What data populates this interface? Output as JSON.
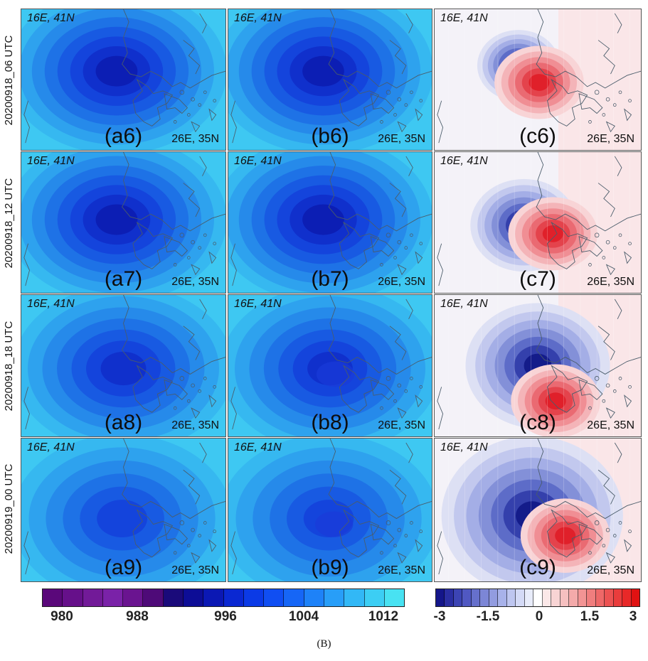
{
  "row_labels": [
    "20200918_06 UTC",
    "20200918_12 UTC",
    "20200918_18 UTC",
    "20200919_00 UTC"
  ],
  "corner_nw": "16E, 41N",
  "corner_se": "26E, 35N",
  "panel_labels": [
    [
      "(a6)",
      "(b6)",
      "(c6)"
    ],
    [
      "(a7)",
      "(b7)",
      "(c7)"
    ],
    [
      "(a8)",
      "(b8)",
      "(c8)"
    ],
    [
      "(a9)",
      "(b9)",
      "(c9)"
    ]
  ],
  "pressure_colorbar": {
    "unit_range": [
      978,
      1014
    ],
    "tick_labels": [
      "980",
      "988",
      "996",
      "1004",
      "1012"
    ],
    "colors": [
      "#5a087a",
      "#66108a",
      "#721a98",
      "#7a22a8",
      "#6a1490",
      "#4e0a78",
      "#1a0a7a",
      "#0d0d96",
      "#0b18b4",
      "#0a28d2",
      "#0b3ae6",
      "#104ef2",
      "#1666f6",
      "#1e82f8",
      "#289ef8",
      "#32b8f6",
      "#3ccef4",
      "#48e2f2"
    ]
  },
  "difference_colorbar": {
    "unit_range": [
      -3,
      3
    ],
    "tick_labels": [
      "-3",
      "-1.5",
      "0",
      "1.5",
      "3"
    ],
    "colors": [
      "#14168a",
      "#2a2ea2",
      "#3c44b4",
      "#5058c2",
      "#6670cc",
      "#7c86d6",
      "#929ce0",
      "#a8b2ea",
      "#bec6f0",
      "#d4daf6",
      "#e8ecfa",
      "#ffffff",
      "#fbe8e8",
      "#f8d4d4",
      "#f6c0c0",
      "#f4aaaa",
      "#f29494",
      "#f07e7e",
      "#ee6868",
      "#ec5252",
      "#ea3c3c",
      "#e82828",
      "#e01212"
    ]
  },
  "caption": "(B)"
}
